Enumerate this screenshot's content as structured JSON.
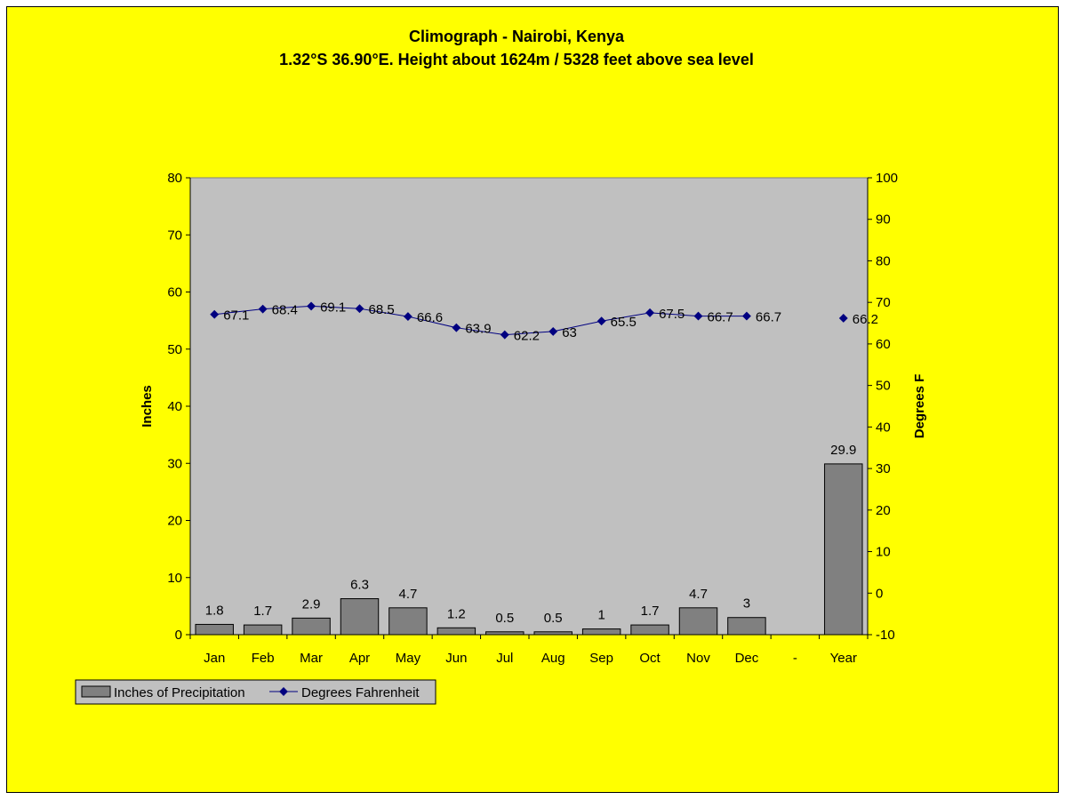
{
  "chart_data": {
    "type": "bar",
    "title": "Climograph - Nairobi, Kenya",
    "subtitle": "1.32°S 36.90°E. Height about 1624m / 5328 feet above sea level",
    "categories": [
      "Jan",
      "Feb",
      "Mar",
      "Apr",
      "May",
      "Jun",
      "Jul",
      "Aug",
      "Sep",
      "Oct",
      "Nov",
      "Dec",
      "-",
      "Year"
    ],
    "ylabel": "Inches",
    "y2label": "Degrees F",
    "ylim": [
      0,
      80
    ],
    "y2lim": [
      -10,
      100
    ],
    "yticks": [
      "0",
      "10",
      "20",
      "30",
      "40",
      "50",
      "60",
      "70",
      "80"
    ],
    "y2ticks": [
      "-10",
      "0",
      "10",
      "20",
      "30",
      "40",
      "50",
      "60",
      "70",
      "80",
      "90",
      "100"
    ],
    "grid": false,
    "legend_position": "bottom-left",
    "series": [
      {
        "name": "Inches of Precipitation",
        "type": "bar",
        "axis": "left",
        "color": "#808080",
        "values": [
          1.8,
          1.7,
          2.9,
          6.3,
          4.7,
          1.2,
          0.5,
          0.5,
          1,
          1.7,
          4.7,
          3,
          null,
          29.9
        ],
        "labels": [
          "1.8",
          "1.7",
          "2.9",
          "6.3",
          "4.7",
          "1.2",
          "0.5",
          "0.5",
          "1",
          "1.7",
          "4.7",
          "3",
          "",
          "29.9"
        ]
      },
      {
        "name": "Degrees Fahrenheit",
        "type": "line",
        "axis": "right",
        "color": "#000080",
        "values": [
          67.1,
          68.4,
          69.1,
          68.5,
          66.6,
          63.9,
          62.2,
          63,
          65.5,
          67.5,
          66.7,
          66.7,
          null,
          66.2
        ],
        "labels": [
          "67.1",
          "68.4",
          "69.1",
          "68.5",
          "66.6",
          "63.9",
          "62.2",
          "63",
          "65.5",
          "67.5",
          "66.7",
          "66.7",
          "",
          "66.2"
        ]
      }
    ]
  },
  "colors": {
    "background": "#ffff00",
    "plot_area": "#c0c0c0",
    "bar_fill": "#808080",
    "line": "#000080"
  }
}
